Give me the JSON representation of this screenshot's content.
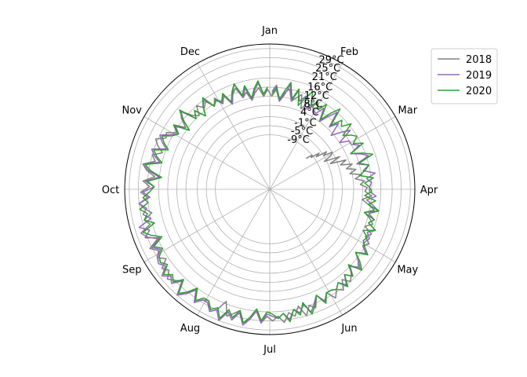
{
  "chart_data": {
    "type": "line",
    "projection": "polar",
    "direction": "clockwise",
    "theta_zero": "top",
    "theta_tick_labels": [
      "Jan",
      "Feb",
      "Mar",
      "Apr",
      "May",
      "Jun",
      "Jul",
      "Aug",
      "Sep",
      "Oct",
      "Nov",
      "Dec"
    ],
    "r_tick_values": [
      -9,
      -5,
      -1,
      4,
      8,
      12,
      16,
      21,
      25,
      29
    ],
    "r_tick_labels": [
      "-9°C",
      "-5°C",
      "-1°C",
      "4°C",
      "8°C",
      "12°C",
      "16°C",
      "21°C",
      "25°C",
      "29°C"
    ],
    "rlim": [
      -33,
      31
    ],
    "grid": true,
    "legend_position": "upper right, outside plot",
    "series": [
      {
        "name": "2018",
        "color": "#808080",
        "monthly_values": [
          {
            "month": "Feb",
            "start_day": 20,
            "values": [
              -12,
              -9,
              -10,
              -6,
              -8,
              -3,
              -5,
              -1
            ]
          },
          {
            "month": "Mar",
            "values": [
              -2,
              -6,
              1,
              -4,
              3,
              0,
              5,
              2,
              6,
              3,
              8,
              5,
              9,
              7,
              10
            ]
          },
          {
            "month": "Apr",
            "values": [
              9,
              12,
              8,
              11,
              14,
              10,
              13,
              15,
              12,
              16,
              14,
              17
            ]
          },
          {
            "month": "May",
            "values": [
              15,
              18,
              14,
              17,
              20,
              16,
              19,
              21,
              18,
              22,
              20,
              23
            ]
          },
          {
            "month": "Jun",
            "values": [
              19,
              22,
              18,
              23,
              21,
              25,
              20,
              24,
              22,
              26,
              23,
              25
            ]
          },
          {
            "month": "Jul",
            "values": [
              23,
              26,
              21,
              25,
              27,
              22,
              24,
              26,
              20,
              25,
              27,
              23
            ]
          },
          {
            "month": "Aug",
            "values": [
              24,
              27,
              22,
              26,
              28,
              23,
              25,
              27,
              24,
              26,
              22,
              25
            ]
          },
          {
            "month": "Sep",
            "values": [
              23,
              26,
              21,
              25,
              27,
              22,
              24,
              20,
              23,
              25,
              21,
              24
            ]
          },
          {
            "month": "Oct",
            "values": [
              20,
              23,
              18,
              22,
              24,
              19,
              21,
              17,
              20,
              22,
              18,
              19
            ]
          },
          {
            "month": "Nov",
            "values": [
              15,
              18,
              13,
              17,
              19,
              14,
              12,
              16,
              13,
              15,
              11,
              14
            ]
          },
          {
            "month": "Dec",
            "values": [
              10,
              13,
              8,
              12,
              14,
              9,
              11,
              7,
              10,
              12,
              8,
              11
            ]
          },
          {
            "month": "Jan",
            "values": [
              8,
              11,
              6,
              10,
              12,
              7,
              9,
              11,
              5,
              9,
              7,
              10
            ]
          }
        ]
      },
      {
        "name": "2019",
        "color": "#9467bd",
        "monthly_values": [
          {
            "month": "Jan",
            "values": [
              10,
              13,
              6,
              9,
              14,
              7,
              12,
              8,
              11,
              5,
              9,
              7
            ]
          },
          {
            "month": "Feb",
            "values": [
              6,
              10,
              4,
              8,
              12,
              5,
              9,
              3,
              7,
              11,
              4,
              8
            ]
          },
          {
            "month": "Mar",
            "values": [
              8,
              11,
              6,
              10,
              13,
              7,
              12,
              9,
              14,
              10,
              12,
              11
            ]
          },
          {
            "month": "Apr",
            "values": [
              11,
              14,
              10,
              13,
              16,
              12,
              15,
              13,
              17,
              14,
              16,
              15
            ]
          },
          {
            "month": "May",
            "values": [
              15,
              18,
              14,
              17,
              19,
              16,
              20,
              17,
              21,
              18,
              20,
              19
            ]
          },
          {
            "month": "Jun",
            "values": [
              19,
              22,
              18,
              21,
              24,
              20,
              23,
              21,
              25,
              22,
              24,
              23
            ]
          },
          {
            "month": "Jul",
            "values": [
              22,
              26,
              21,
              25,
              28,
              23,
              27,
              24,
              29,
              25,
              27,
              24
            ]
          },
          {
            "month": "Aug",
            "values": [
              24,
              27,
              22,
              26,
              29,
              23,
              27,
              25,
              28,
              24,
              26,
              25
            ]
          },
          {
            "month": "Sep",
            "values": [
              22,
              25,
              20,
              26,
              23,
              27,
              21,
              24,
              22,
              25,
              20,
              23
            ]
          },
          {
            "month": "Oct",
            "values": [
              18,
              22,
              16,
              21,
              24,
              17,
              20,
              22,
              16,
              19,
              21,
              17
            ]
          },
          {
            "month": "Nov",
            "values": [
              14,
              17,
              11,
              16,
              19,
              12,
              15,
              10,
              14,
              16,
              11,
              13
            ]
          },
          {
            "month": "Dec",
            "values": [
              10,
              14,
              8,
              12,
              16,
              9,
              13,
              7,
              11,
              14,
              9,
              12
            ]
          }
        ]
      },
      {
        "name": "2020",
        "color": "#2ca02c",
        "monthly_values": [
          {
            "month": "Jan",
            "values": [
              9,
              12,
              7,
              11,
              15,
              8,
              13,
              6,
              10,
              14,
              8,
              11
            ]
          },
          {
            "month": "Feb",
            "values": [
              8,
              12,
              5,
              10,
              14,
              6,
              11,
              9,
              13,
              7,
              10,
              12
            ]
          },
          {
            "month": "Mar",
            "values": [
              9,
              13,
              6,
              11,
              15,
              8,
              12,
              10,
              7,
              13,
              9,
              11
            ]
          },
          {
            "month": "Apr",
            "values": [
              12,
              9,
              14,
              11,
              16,
              10,
              15,
              13,
              17,
              12,
              15,
              14
            ]
          },
          {
            "month": "May",
            "values": [
              16,
              19,
              14,
              18,
              21,
              15,
              20,
              17,
              22,
              18,
              20,
              19
            ]
          },
          {
            "month": "Jun",
            "values": [
              19,
              23,
              18,
              22,
              25,
              19,
              24,
              21,
              26,
              22,
              24,
              22
            ]
          },
          {
            "month": "Jul",
            "values": [
              21,
              25,
              20,
              24,
              27,
              22,
              26,
              23,
              28,
              24,
              26,
              23
            ]
          },
          {
            "month": "Aug",
            "values": [
              23,
              26,
              21,
              25,
              28,
              22,
              26,
              24,
              27,
              23,
              25,
              24
            ]
          },
          {
            "month": "Sep",
            "values": [
              21,
              24,
              19,
              23,
              26,
              20,
              24,
              22,
              25,
              21,
              23,
              20
            ]
          },
          {
            "month": "Oct",
            "values": [
              18,
              21,
              15,
              20,
              23,
              16,
              19,
              21,
              15,
              18,
              20,
              16
            ]
          },
          {
            "month": "Nov",
            "values": [
              14,
              18,
              11,
              16,
              20,
              12,
              15,
              10,
              14,
              17,
              11,
              13
            ]
          },
          {
            "month": "Dec",
            "values": [
              11,
              14,
              9,
              13,
              16,
              10,
              14,
              8,
              12,
              15,
              9,
              12
            ]
          }
        ]
      }
    ]
  }
}
